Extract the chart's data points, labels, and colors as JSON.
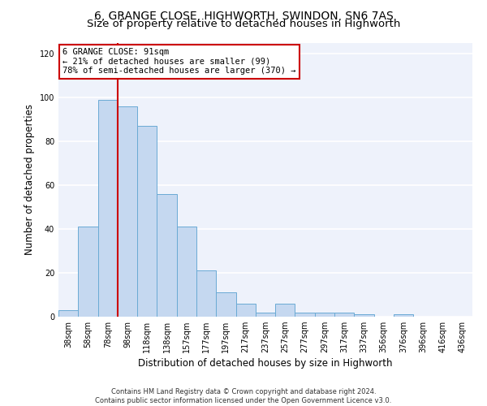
{
  "title": "6, GRANGE CLOSE, HIGHWORTH, SWINDON, SN6 7AS",
  "subtitle": "Size of property relative to detached houses in Highworth",
  "xlabel": "Distribution of detached houses by size in Highworth",
  "ylabel": "Number of detached properties",
  "categories": [
    "38sqm",
    "58sqm",
    "78sqm",
    "98sqm",
    "118sqm",
    "138sqm",
    "157sqm",
    "177sqm",
    "197sqm",
    "217sqm",
    "237sqm",
    "257sqm",
    "277sqm",
    "297sqm",
    "317sqm",
    "337sqm",
    "356sqm",
    "376sqm",
    "396sqm",
    "416sqm",
    "436sqm"
  ],
  "values": [
    3,
    41,
    99,
    96,
    87,
    56,
    41,
    21,
    11,
    6,
    2,
    6,
    2,
    2,
    2,
    1,
    0,
    1,
    0,
    0,
    0
  ],
  "bar_color": "#c5d8f0",
  "bar_edge_color": "#6aaad4",
  "bg_color": "#eef2fb",
  "grid_color": "#ffffff",
  "vline_x": 2.5,
  "vline_color": "#cc0000",
  "annotation_text": "6 GRANGE CLOSE: 91sqm\n← 21% of detached houses are smaller (99)\n78% of semi-detached houses are larger (370) →",
  "annotation_box_color": "#ffffff",
  "annotation_box_edge": "#cc0000",
  "footer": "Contains HM Land Registry data © Crown copyright and database right 2024.\nContains public sector information licensed under the Open Government Licence v3.0.",
  "ylim": [
    0,
    125
  ],
  "yticks": [
    0,
    20,
    40,
    60,
    80,
    100,
    120
  ],
  "title_fontsize": 10,
  "subtitle_fontsize": 9.5,
  "ylabel_fontsize": 8.5,
  "xlabel_fontsize": 8.5,
  "tick_fontsize": 7
}
